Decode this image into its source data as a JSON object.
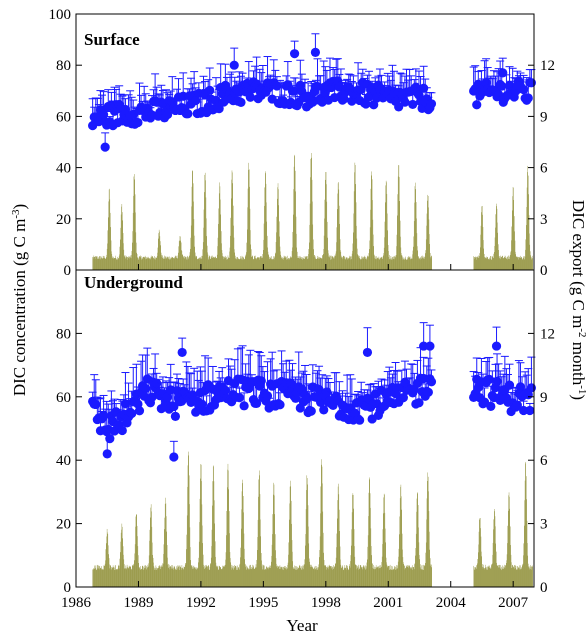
{
  "chart_data": {
    "type": "bar+scatter",
    "x_axis": {
      "label": "Year",
      "range": [
        1986,
        2008
      ],
      "ticks": [
        1986,
        1989,
        1992,
        1995,
        1998,
        2001,
        2004,
        2007
      ],
      "tick_labels": [
        "1986",
        "1989",
        "1992",
        "1995",
        "1998",
        "2001",
        "2004",
        "2007"
      ]
    },
    "left_axis": {
      "label_main": "DIC concentration (g C m",
      "label_sup": "-3",
      "label_end": ")"
    },
    "right_axis": {
      "label_main": "DIC export (g C m",
      "label_sup1": "-2",
      "label_mid": " month",
      "label_sup2": "-1",
      "label_end": ")"
    },
    "gap": [
      2003.1,
      2005.1
    ],
    "colors": {
      "concentration": "#1a1aff",
      "export": "#7f7f1a"
    },
    "panels": [
      {
        "name": "Surface",
        "left_range": [
          0,
          100
        ],
        "left_ticks": [
          0,
          20,
          40,
          60,
          80,
          100
        ],
        "left_tick_labels": [
          "0",
          "20",
          "40",
          "60",
          "80",
          "100"
        ],
        "right_range": [
          0,
          15
        ],
        "right_ticks": [
          0,
          3,
          6,
          9,
          12
        ],
        "right_tick_labels": [
          "0",
          "3",
          "6",
          "9",
          "12"
        ],
        "concentration_trend": [
          [
            1986.8,
            59
          ],
          [
            1988,
            61
          ],
          [
            1990,
            62
          ],
          [
            1992,
            65
          ],
          [
            1993.5,
            69
          ],
          [
            1995,
            70
          ],
          [
            1997,
            68
          ],
          [
            1999,
            70
          ],
          [
            2001,
            67
          ],
          [
            2003,
            67
          ],
          [
            2005.2,
            68
          ],
          [
            2006.5,
            70
          ],
          [
            2008,
            69
          ]
        ],
        "concentration_highlights": [
          [
            1987.4,
            48
          ],
          [
            1993.6,
            80
          ],
          [
            1996.5,
            84.5
          ],
          [
            1997.5,
            85
          ],
          [
            2006.5,
            77
          ]
        ],
        "export_base": 0.6,
        "export_peaks": [
          [
            1987.6,
            4.0
          ],
          [
            1988.2,
            3.1
          ],
          [
            1988.8,
            5.0
          ],
          [
            1990.0,
            1.6
          ],
          [
            1991.0,
            1.3
          ],
          [
            1991.6,
            5.1
          ],
          [
            1992.2,
            5.0
          ],
          [
            1992.9,
            4.3
          ],
          [
            1993.5,
            5.2
          ],
          [
            1994.3,
            5.6
          ],
          [
            1995.1,
            5.0
          ],
          [
            1995.7,
            4.4
          ],
          [
            1996.5,
            6.2
          ],
          [
            1997.3,
            6.2
          ],
          [
            1998.0,
            5.2
          ],
          [
            1998.6,
            4.5
          ],
          [
            1999.4,
            5.6
          ],
          [
            2000.2,
            5.0
          ],
          [
            2000.9,
            4.6
          ],
          [
            2001.5,
            5.6
          ],
          [
            2002.3,
            4.4
          ],
          [
            2002.9,
            3.8
          ],
          [
            2005.5,
            3.0
          ],
          [
            2006.2,
            3.1
          ],
          [
            2007.0,
            4.2
          ],
          [
            2007.7,
            5.3
          ]
        ]
      },
      {
        "name": "Underground",
        "left_range": [
          0,
          100
        ],
        "left_ticks": [
          0,
          20,
          40,
          60,
          80
        ],
        "left_tick_labels": [
          "0",
          "20",
          "40",
          "60",
          "80"
        ],
        "right_range": [
          0,
          15
        ],
        "right_ticks": [
          0,
          3,
          6,
          9,
          12
        ],
        "right_tick_labels": [
          "0",
          "3",
          "6",
          "9",
          "12"
        ],
        "concentration_trend": [
          [
            1986.8,
            55
          ],
          [
            1987.5,
            50
          ],
          [
            1988.5,
            54
          ],
          [
            1989.5,
            62
          ],
          [
            1990.5,
            58
          ],
          [
            1992,
            59
          ],
          [
            1993.5,
            62
          ],
          [
            1995,
            61
          ],
          [
            1996.5,
            60
          ],
          [
            1998,
            58
          ],
          [
            1999.5,
            57
          ],
          [
            2001,
            58
          ],
          [
            2002.5,
            62
          ],
          [
            2003,
            66
          ],
          [
            2005.2,
            63
          ],
          [
            2006.5,
            60
          ],
          [
            2008,
            59
          ]
        ],
        "concentration_highlights": [
          [
            1987.5,
            42
          ],
          [
            1990.7,
            41
          ],
          [
            1991.1,
            74
          ],
          [
            2000.0,
            74
          ],
          [
            2002.7,
            76
          ],
          [
            2003.0,
            76
          ],
          [
            2006.2,
            76
          ]
        ],
        "export_base": 0.8,
        "export_peaks": [
          [
            1987.5,
            1.8
          ],
          [
            1988.2,
            2.0
          ],
          [
            1988.9,
            2.6
          ],
          [
            1989.6,
            3.0
          ],
          [
            1990.3,
            3.3
          ],
          [
            1991.4,
            5.5
          ],
          [
            1992.0,
            5.0
          ],
          [
            1992.6,
            4.8
          ],
          [
            1993.3,
            5.0
          ],
          [
            1994.0,
            4.2
          ],
          [
            1994.8,
            4.6
          ],
          [
            1995.5,
            4.0
          ],
          [
            1996.3,
            4.2
          ],
          [
            1997.1,
            4.4
          ],
          [
            1997.8,
            5.2
          ],
          [
            1998.6,
            4.0
          ],
          [
            1999.3,
            3.6
          ],
          [
            2000.1,
            4.2
          ],
          [
            2000.8,
            3.6
          ],
          [
            2001.6,
            4.0
          ],
          [
            2002.4,
            3.6
          ],
          [
            2002.9,
            4.6
          ],
          [
            2005.4,
            2.4
          ],
          [
            2006.1,
            2.8
          ],
          [
            2006.8,
            3.6
          ],
          [
            2007.6,
            5.1
          ]
        ]
      }
    ]
  }
}
